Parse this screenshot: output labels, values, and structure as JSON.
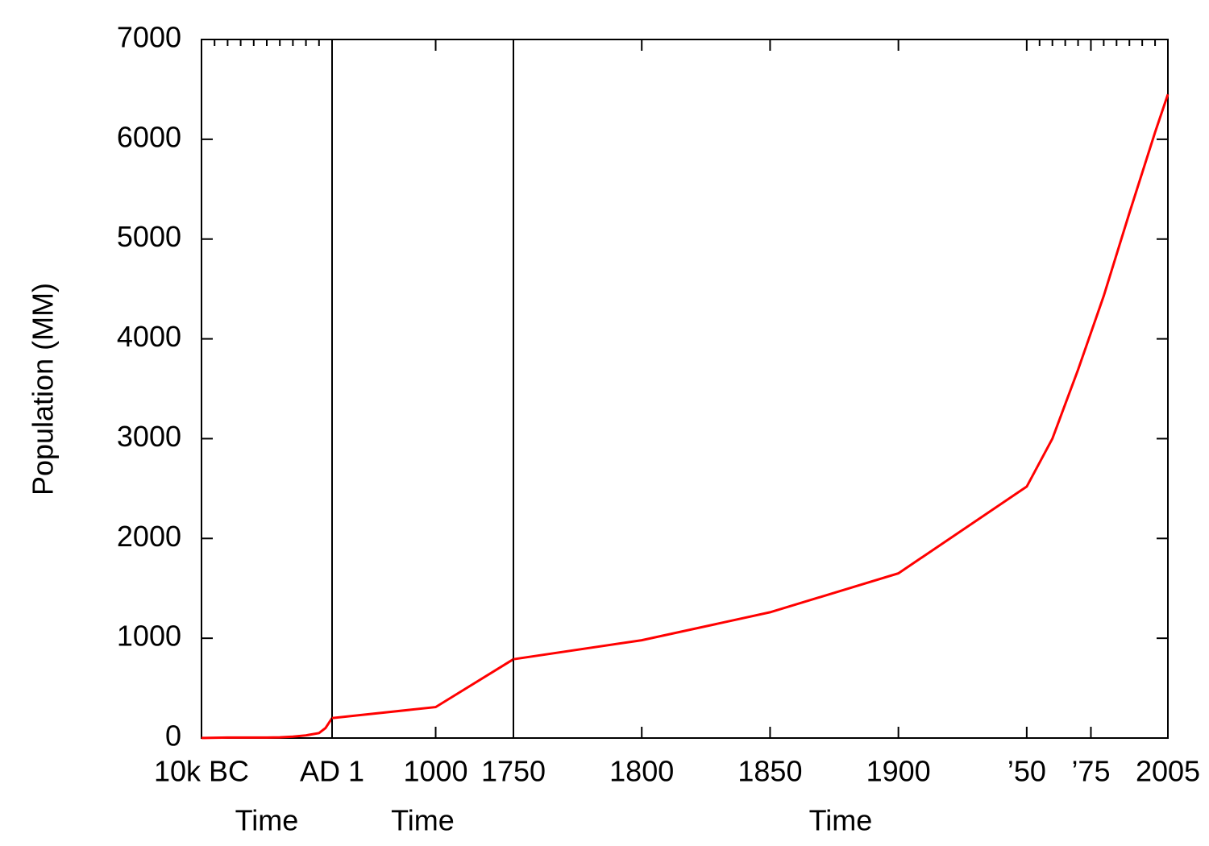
{
  "chart_data": {
    "type": "line",
    "ylabel": "Population (MM)",
    "color": "#ff0000",
    "ylim": [
      0,
      7000
    ],
    "yticks": [
      0,
      1000,
      2000,
      3000,
      4000,
      5000,
      6000,
      7000
    ],
    "segments": [
      {
        "xlabel": "Time",
        "xlim": [
          -10000,
          1
        ],
        "xticks": [
          {
            "value": -10000,
            "label": "10k BC"
          },
          {
            "value": 1,
            "label": "AD 1"
          }
        ],
        "minor_xticks": [
          -9000,
          -8000,
          -7000,
          -6000,
          -5000,
          -4000,
          -3000,
          -2000,
          -1000
        ],
        "x": [
          -10000,
          -8000,
          -6500,
          -5000,
          -4000,
          -3000,
          -2000,
          -1000,
          -500,
          1
        ],
        "values": [
          1,
          5,
          5,
          5,
          7,
          14,
          27,
          50,
          100,
          200
        ]
      },
      {
        "xlabel": "Time",
        "xlim": [
          1,
          1750
        ],
        "xticks": [
          1000
        ],
        "minor_xticks": [],
        "x": [
          1,
          1000,
          1750
        ],
        "values": [
          200,
          310,
          790
        ]
      },
      {
        "xlabel": "Time",
        "xlim": [
          1750,
          2005
        ],
        "xticks": [
          1750,
          1800,
          1850,
          1900,
          {
            "value": 1950,
            "label": "’50"
          },
          {
            "value": 1975,
            "label": "’75"
          },
          2005
        ],
        "minor_xticks": [
          1955,
          1960,
          1965,
          1970,
          1980,
          1985,
          1990,
          1995,
          2000
        ],
        "x": [
          1750,
          1800,
          1850,
          1900,
          1950,
          1960,
          1970,
          1980,
          1990,
          2000,
          2005
        ],
        "values": [
          790,
          980,
          1260,
          1650,
          2520,
          3000,
          3690,
          4430,
          5260,
          6070,
          6450
        ]
      }
    ]
  }
}
